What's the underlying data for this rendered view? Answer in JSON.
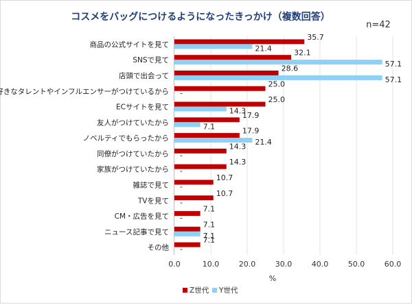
{
  "chart_data": {
    "type": "bar",
    "orientation": "horizontal",
    "title": "コスメをバッグにつけるようになったきっかけ（複数回答）",
    "note": "n=42",
    "xlabel": "%",
    "xlim": [
      0,
      60
    ],
    "xticks": [
      "0.0",
      "10.0",
      "20.0",
      "30.0",
      "40.0",
      "50.0",
      "60.0"
    ],
    "legend_position": "bottom",
    "colors": {
      "z": "#c00000",
      "y": "#8fd0f5"
    },
    "categories": [
      "商品の公式サイトを見て",
      "SNSで見て",
      "店頭で出会って",
      "好きなタレントやインフルエンサーがつけているから",
      "ECサイトを見て",
      "友人がつけていたから",
      "ノベルティでもらったから",
      "同僚がつけていたから",
      "家族がつけていたから",
      "雑誌で見て",
      "TVを見て",
      "CM・広告を見て",
      "ニュース記事で見て",
      "その他"
    ],
    "series": [
      {
        "name": "Z世代",
        "values": [
          35.7,
          32.1,
          28.6,
          25.0,
          25.0,
          17.9,
          17.9,
          14.3,
          14.3,
          10.7,
          10.7,
          7.1,
          7.1,
          7.1
        ],
        "labels": [
          "35.7",
          "32.1",
          "28.6",
          "25.0",
          "25.0",
          "17.9",
          "17.9",
          "14.3",
          "14.3",
          "10.7",
          "10.7",
          "7.1",
          "7.1",
          "7.1"
        ]
      },
      {
        "name": "Y世代",
        "values": [
          21.4,
          57.1,
          57.1,
          0,
          14.3,
          7.1,
          21.4,
          0,
          0,
          0,
          0,
          0,
          7.1,
          0
        ],
        "labels": [
          "21.4",
          "57.1",
          "57.1",
          "-",
          "14.3",
          "7.1",
          "21.4",
          "-",
          "-",
          "-",
          "-",
          "-",
          "7.1",
          "-"
        ]
      }
    ]
  }
}
